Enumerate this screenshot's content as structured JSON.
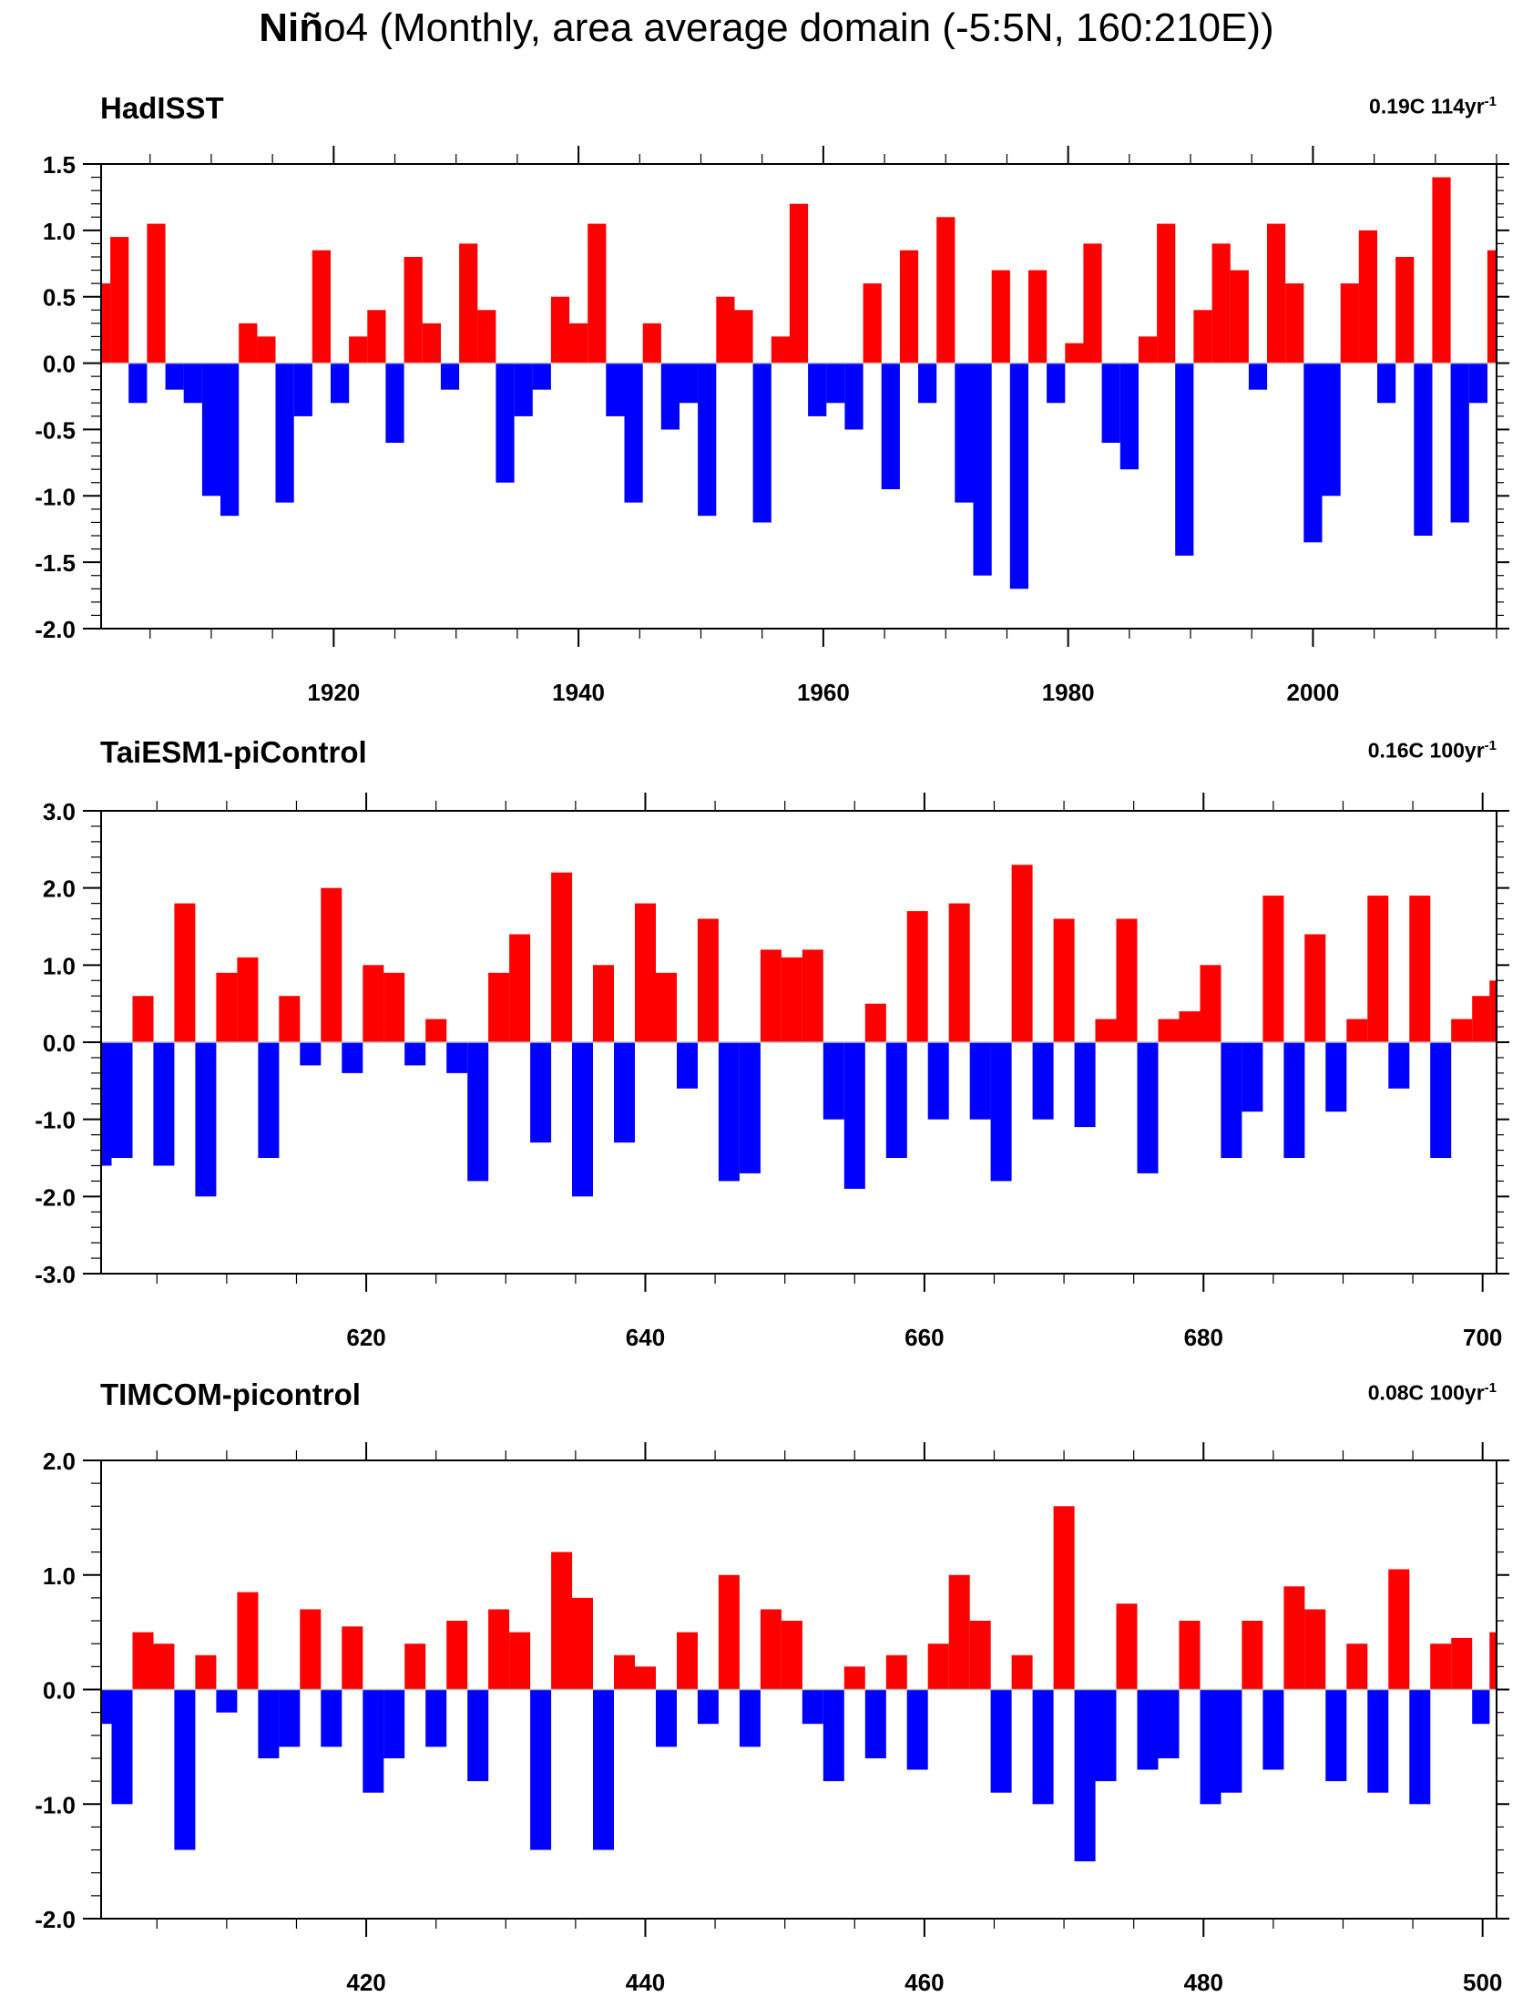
{
  "figure": {
    "title_bold": "Niñ",
    "title_rest": "o4 (Monthly, area average domain (-5:5N, 160:210E))"
  },
  "colors": {
    "positive": "#ff0000",
    "negative": "#0000ff",
    "zero_line": "#bbbbbb",
    "frame": "#000000"
  },
  "chart_data": [
    {
      "type": "area",
      "title": "HadISST",
      "trend_value": "0.19C 114yr",
      "trend_exponent": "-1",
      "xlim": [
        1901,
        2015
      ],
      "ylim": [
        -2.0,
        1.5
      ],
      "ytick_step": 0.5,
      "ytick_labels": [
        "1.5",
        "1.0",
        "0.5",
        "0.0",
        "-0.5",
        "-1.0",
        "-1.5",
        "-2.0"
      ],
      "xtick_labels": [
        "1920",
        "1940",
        "1960",
        "1980",
        "2000"
      ],
      "xtick_values": [
        1920,
        1940,
        1960,
        1980,
        2000
      ],
      "major_x_step": 20,
      "minor_x_step": 5,
      "grid": false,
      "x": [
        1901,
        1902.5,
        1904,
        1905.5,
        1907,
        1908.5,
        1910,
        1911.5,
        1913,
        1914.5,
        1916,
        1917.5,
        1919,
        1920.5,
        1922,
        1923.5,
        1925,
        1926.5,
        1928,
        1929.5,
        1931,
        1932.5,
        1934,
        1935.5,
        1937,
        1938.5,
        1940,
        1941.5,
        1943,
        1944.5,
        1946,
        1947.5,
        1949,
        1950.5,
        1952,
        1953.5,
        1955,
        1956.5,
        1958,
        1959.5,
        1961,
        1962.5,
        1964,
        1965.5,
        1967,
        1968.5,
        1970,
        1971.5,
        1973,
        1974.5,
        1976,
        1977.5,
        1979,
        1980.5,
        1982,
        1983.5,
        1985,
        1986.5,
        1988,
        1989.5,
        1991,
        1992.5,
        1994,
        1995.5,
        1997,
        1998.5,
        2000,
        2001.5,
        2003,
        2004.5,
        2006,
        2007.5,
        2009,
        2010.5,
        2012,
        2013.5,
        2015
      ],
      "y": [
        0.6,
        0.95,
        -0.3,
        1.05,
        -0.2,
        -0.3,
        -1.0,
        -1.15,
        0.3,
        0.2,
        -1.05,
        -0.4,
        0.85,
        -0.3,
        0.2,
        0.4,
        -0.6,
        0.8,
        0.3,
        -0.2,
        0.9,
        0.4,
        -0.9,
        -0.4,
        -0.2,
        0.5,
        0.3,
        1.05,
        -0.4,
        -1.05,
        0.3,
        -0.5,
        -0.3,
        -1.15,
        0.5,
        0.4,
        -1.2,
        0.2,
        1.2,
        -0.4,
        -0.3,
        -0.5,
        0.6,
        -0.95,
        0.85,
        -0.3,
        1.1,
        -1.05,
        -1.6,
        0.7,
        -1.7,
        0.7,
        -0.3,
        0.15,
        0.9,
        -0.6,
        -0.8,
        0.2,
        1.05,
        -1.45,
        0.4,
        0.9,
        0.7,
        -0.2,
        1.05,
        0.6,
        -1.35,
        -1.0,
        0.6,
        1.0,
        -0.3,
        0.8,
        -1.3,
        1.4,
        -1.2,
        -0.3,
        0.85
      ]
    },
    {
      "type": "area",
      "title": "TaiESM1-piControl",
      "trend_value": "0.16C 100yr",
      "trend_exponent": "-1",
      "xlim": [
        601,
        701
      ],
      "ylim": [
        -3.0,
        3.0
      ],
      "ytick_step": 1.0,
      "ytick_labels": [
        "3.0",
        "2.0",
        "1.0",
        "0.0",
        "-1.0",
        "-2.0",
        "-3.0"
      ],
      "xtick_labels": [
        "620",
        "640",
        "660",
        "680",
        "700"
      ],
      "xtick_values": [
        620,
        640,
        660,
        680,
        700
      ],
      "major_x_step": 20,
      "minor_x_step": 5,
      "grid": false,
      "x": [
        601,
        602.5,
        604,
        605.5,
        607,
        608.5,
        610,
        611.5,
        613,
        614.5,
        616,
        617.5,
        619,
        620.5,
        622,
        623.5,
        625,
        626.5,
        628,
        629.5,
        631,
        632.5,
        634,
        635.5,
        637,
        638.5,
        640,
        641.5,
        643,
        644.5,
        646,
        647.5,
        649,
        650.5,
        652,
        653.5,
        655,
        656.5,
        658,
        659.5,
        661,
        662.5,
        664,
        665.5,
        667,
        668.5,
        670,
        671.5,
        673,
        674.5,
        676,
        677.5,
        679,
        680.5,
        682,
        683.5,
        685,
        686.5,
        688,
        689.5,
        691,
        692.5,
        694,
        695.5,
        697,
        698.5,
        700,
        701
      ],
      "y": [
        -1.6,
        -1.5,
        0.6,
        -1.6,
        1.8,
        -2.0,
        0.9,
        1.1,
        -1.5,
        0.6,
        -0.3,
        2.0,
        -0.4,
        1.0,
        0.9,
        -0.3,
        0.3,
        -0.4,
        -1.8,
        0.9,
        1.4,
        -1.3,
        2.2,
        -2.0,
        1.0,
        -1.3,
        1.8,
        0.9,
        -0.6,
        1.6,
        -1.8,
        -1.7,
        1.2,
        1.1,
        1.2,
        -1.0,
        -1.9,
        0.5,
        -1.5,
        1.7,
        -1.0,
        1.8,
        -1.0,
        -1.8,
        2.3,
        -1.0,
        1.6,
        -1.1,
        0.3,
        1.6,
        -1.7,
        0.3,
        0.4,
        1.0,
        -1.5,
        -0.9,
        1.9,
        -1.5,
        1.4,
        -0.9,
        0.3,
        1.9,
        -0.6,
        1.9,
        -1.5,
        0.3,
        0.6,
        0.8
      ]
    },
    {
      "type": "area",
      "title": "TIMCOM-picontrol",
      "trend_value": "0.08C 100yr",
      "trend_exponent": "-1",
      "xlim": [
        401,
        501
      ],
      "ylim": [
        -2.0,
        2.0
      ],
      "ytick_step": 1.0,
      "ytick_labels": [
        "2.0",
        "1.0",
        "0.0",
        "-1.0",
        "-2.0"
      ],
      "xtick_labels": [
        "420",
        "440",
        "460",
        "480",
        "500"
      ],
      "xtick_values": [
        420,
        440,
        460,
        480,
        500
      ],
      "major_x_step": 20,
      "minor_x_step": 5,
      "grid": false,
      "x": [
        401,
        402.5,
        404,
        405.5,
        407,
        408.5,
        410,
        411.5,
        413,
        414.5,
        416,
        417.5,
        419,
        420.5,
        422,
        423.5,
        425,
        426.5,
        428,
        429.5,
        431,
        432.5,
        434,
        435.5,
        437,
        438.5,
        440,
        441.5,
        443,
        444.5,
        446,
        447.5,
        449,
        450.5,
        452,
        453.5,
        455,
        456.5,
        458,
        459.5,
        461,
        462.5,
        464,
        465.5,
        467,
        468.5,
        470,
        471.5,
        473,
        474.5,
        476,
        477.5,
        479,
        480.5,
        482,
        483.5,
        485,
        486.5,
        488,
        489.5,
        491,
        492.5,
        494,
        495.5,
        497,
        498.5,
        500,
        501
      ],
      "y": [
        -0.3,
        -1.0,
        0.5,
        0.4,
        -1.4,
        0.3,
        -0.2,
        0.85,
        -0.6,
        -0.5,
        0.7,
        -0.5,
        0.55,
        -0.9,
        -0.6,
        0.4,
        -0.5,
        0.6,
        -0.8,
        0.7,
        0.5,
        -1.4,
        1.2,
        0.8,
        -1.4,
        0.3,
        0.2,
        -0.5,
        0.5,
        -0.3,
        1.0,
        -0.5,
        0.7,
        0.6,
        -0.3,
        -0.8,
        0.2,
        -0.6,
        0.3,
        -0.7,
        0.4,
        1.0,
        0.6,
        -0.9,
        0.3,
        -1.0,
        1.6,
        -1.5,
        -0.8,
        0.75,
        -0.7,
        -0.6,
        0.6,
        -1.0,
        -0.9,
        0.6,
        -0.7,
        0.9,
        0.7,
        -0.8,
        0.4,
        -0.9,
        1.05,
        -1.0,
        0.4,
        0.45,
        -0.3,
        0.5
      ]
    }
  ]
}
